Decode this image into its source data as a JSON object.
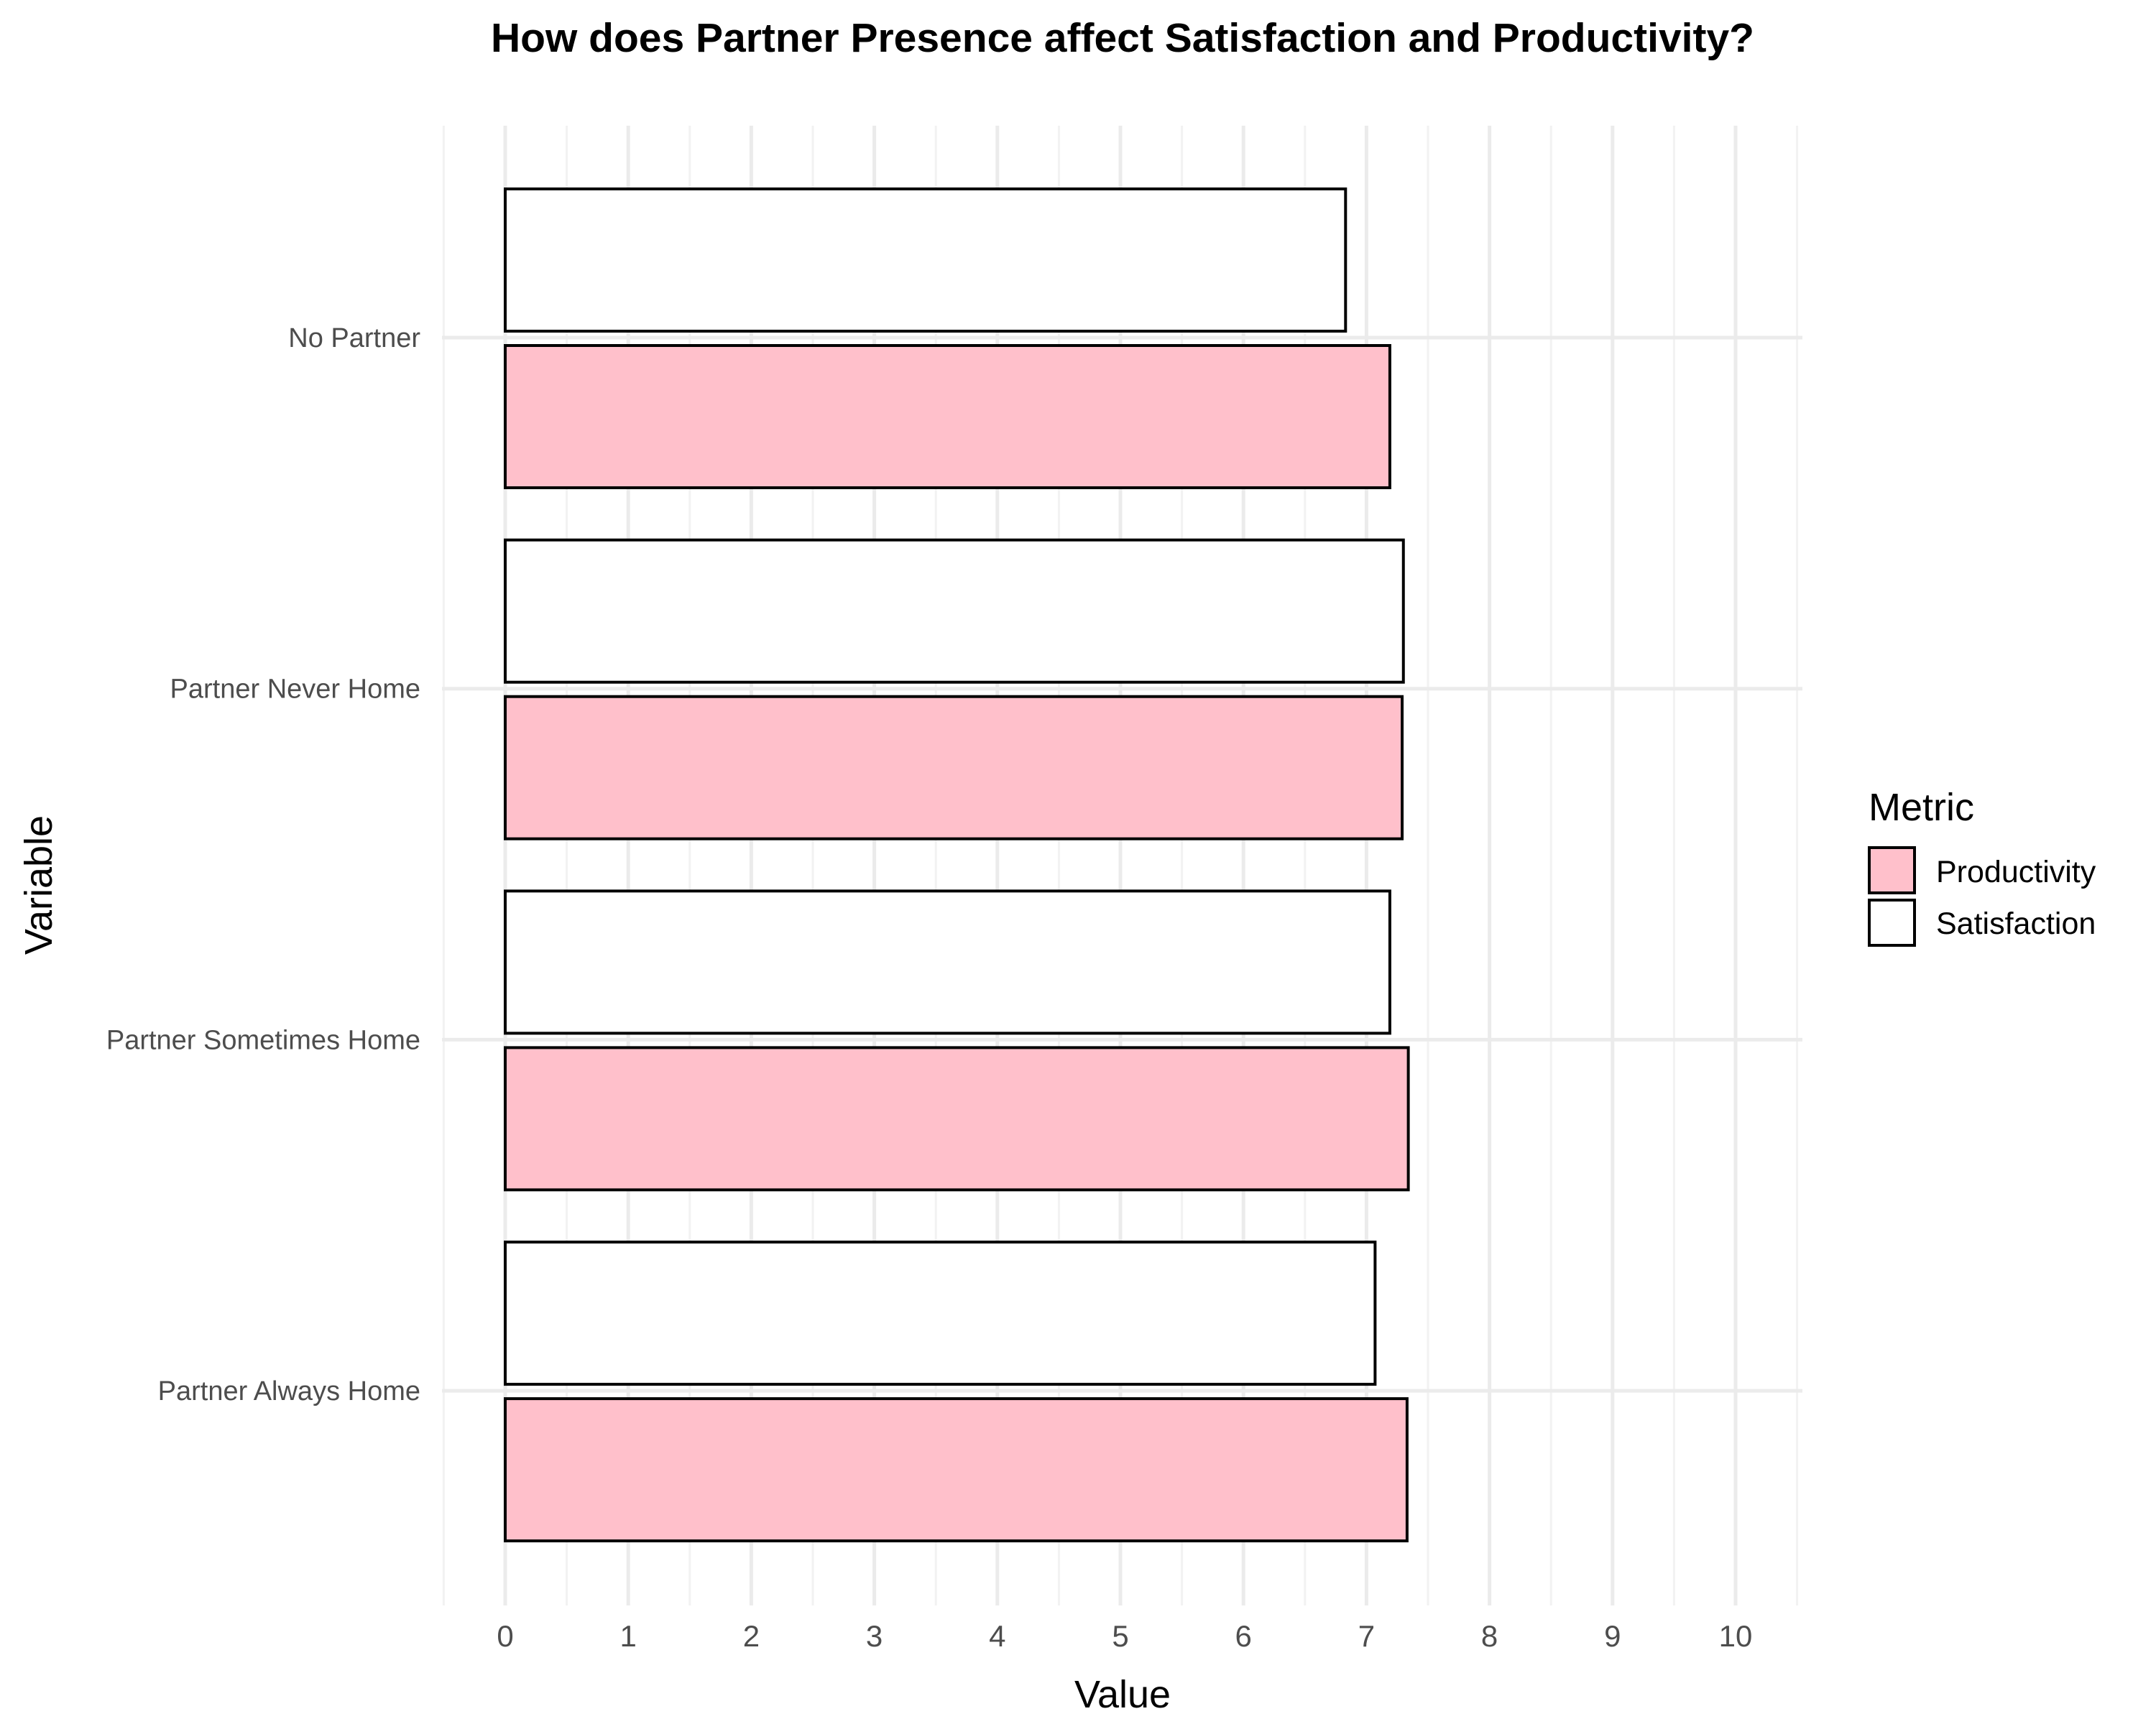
{
  "chart_data": {
    "type": "bar",
    "orientation": "horizontal",
    "title": "How does Partner Presence affect Satisfaction and Productivity?",
    "xlabel": "Value",
    "ylabel": "Variable",
    "xlim": [
      0,
      10
    ],
    "x_ticks": [
      "0",
      "1",
      "2",
      "3",
      "4",
      "5",
      "6",
      "7",
      "8",
      "9",
      "10"
    ],
    "grid": true,
    "categories": [
      "No Partner",
      "Partner Never Home",
      "Partner Sometimes Home",
      "Partner Always Home"
    ],
    "series": [
      {
        "name": "Satisfaction",
        "color": "#ffffff",
        "values": [
          6.83,
          7.3,
          7.19,
          7.07
        ]
      },
      {
        "name": "Productivity",
        "color": "#ffc0cb",
        "values": [
          7.19,
          7.29,
          7.34,
          7.33
        ]
      }
    ],
    "legend": {
      "title": "Metric",
      "position": "right",
      "entries": [
        "Productivity",
        "Satisfaction"
      ]
    }
  }
}
